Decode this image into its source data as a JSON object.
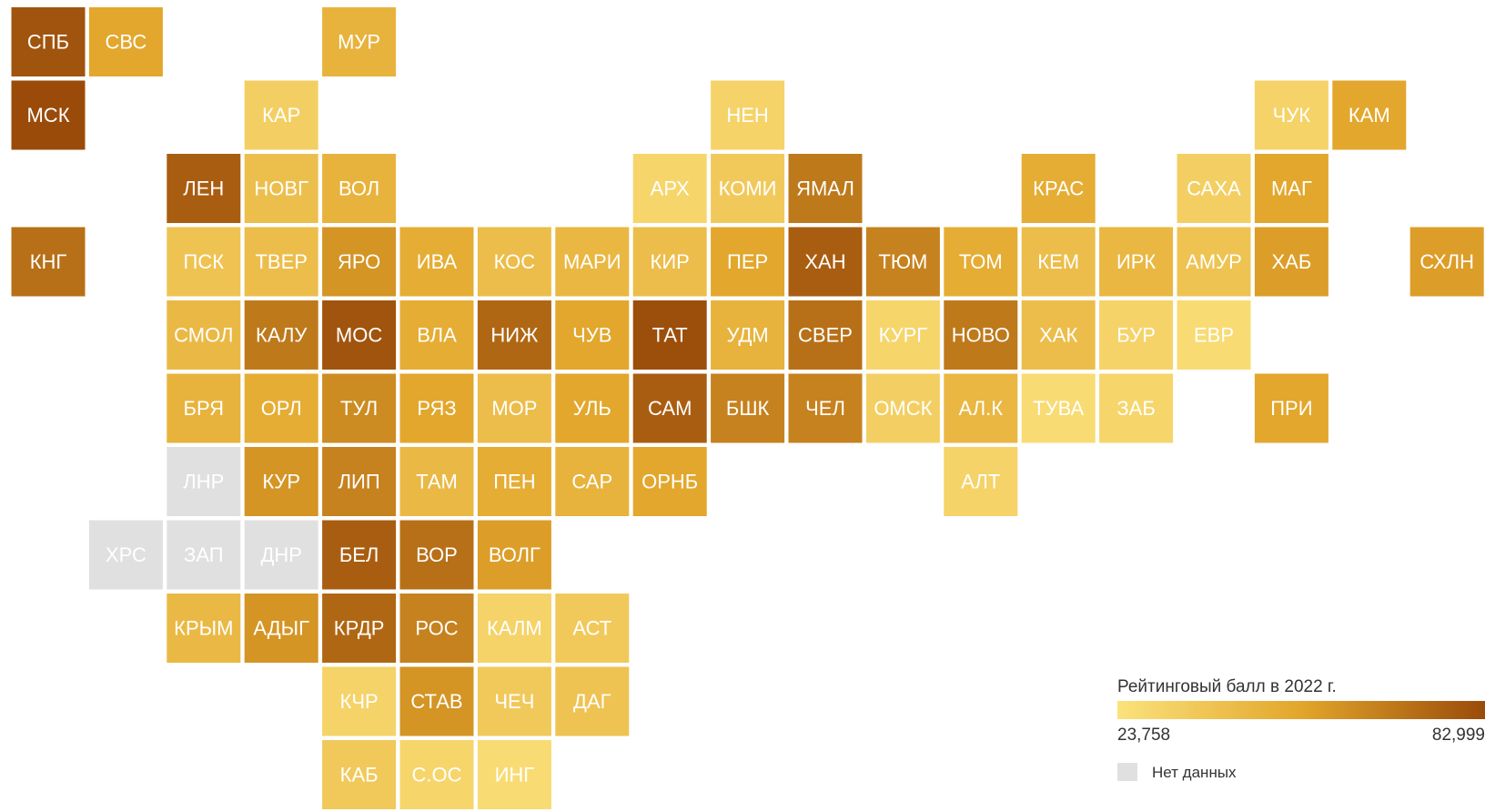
{
  "chart_data": {
    "type": "tilemap",
    "legend_title": "Рейтинговый балл в 2022 г.",
    "scale_min": {
      "value": 23.758,
      "label": "23,758"
    },
    "scale_max": {
      "value": 82.999,
      "label": "82,999"
    },
    "colors": [
      "#fbe27c",
      "#e2a62b",
      "#9a4b0a"
    ],
    "no_data_color": "#e0e0e0",
    "no_data_label": "Нет данных",
    "regions": [
      {
        "label": "СПБ",
        "value": 80
      },
      {
        "label": "СВС",
        "value": 53
      },
      {
        "label": "МУР",
        "value": 47
      },
      {
        "label": "МСК",
        "value": 82.999
      },
      {
        "label": "КАР",
        "value": 33
      },
      {
        "label": "НЕН",
        "value": 31
      },
      {
        "label": "ЧУК",
        "value": 31
      },
      {
        "label": "КАМ",
        "value": 53
      },
      {
        "label": "ЛЕН",
        "value": 77
      },
      {
        "label": "НОВГ",
        "value": 41
      },
      {
        "label": "ВОЛ",
        "value": 47
      },
      {
        "label": "АРХ",
        "value": 30
      },
      {
        "label": "КОМИ",
        "value": 36
      },
      {
        "label": "ЯМАЛ",
        "value": 68
      },
      {
        "label": "КРАС",
        "value": 50
      },
      {
        "label": "САХА",
        "value": 33
      },
      {
        "label": "МАГ",
        "value": 53
      },
      {
        "label": "КНГ",
        "value": 71
      },
      {
        "label": "ПСК",
        "value": 39
      },
      {
        "label": "ТВЕР",
        "value": 42
      },
      {
        "label": "ЯРО",
        "value": 59
      },
      {
        "label": "ИВА",
        "value": 50
      },
      {
        "label": "КОС",
        "value": 42
      },
      {
        "label": "МАРИ",
        "value": 45
      },
      {
        "label": "КИР",
        "value": 42
      },
      {
        "label": "ПЕР",
        "value": 53
      },
      {
        "label": "ХАН",
        "value": 77
      },
      {
        "label": "ТЮМ",
        "value": 65
      },
      {
        "label": "ТОМ",
        "value": 50
      },
      {
        "label": "КЕМ",
        "value": 42
      },
      {
        "label": "ИРК",
        "value": 45
      },
      {
        "label": "АМУР",
        "value": 39
      },
      {
        "label": "ХАБ",
        "value": 56
      },
      {
        "label": "СХЛН",
        "value": 56
      },
      {
        "label": "СМОЛ",
        "value": 44
      },
      {
        "label": "КАЛУ",
        "value": 68
      },
      {
        "label": "МОС",
        "value": 80
      },
      {
        "label": "ВЛА",
        "value": 50
      },
      {
        "label": "НИЖ",
        "value": 74
      },
      {
        "label": "ЧУВ",
        "value": 53
      },
      {
        "label": "ТАТ",
        "value": 82
      },
      {
        "label": "УДМ",
        "value": 47
      },
      {
        "label": "СВЕР",
        "value": 71
      },
      {
        "label": "КУРГ",
        "value": 30
      },
      {
        "label": "НОВО",
        "value": 68
      },
      {
        "label": "ХАК",
        "value": 42
      },
      {
        "label": "БУР",
        "value": 31
      },
      {
        "label": "ЕВР",
        "value": 27
      },
      {
        "label": "БРЯ",
        "value": 47
      },
      {
        "label": "ОРЛ",
        "value": 50
      },
      {
        "label": "ТУЛ",
        "value": 62
      },
      {
        "label": "РЯЗ",
        "value": 53
      },
      {
        "label": "МОР",
        "value": 42
      },
      {
        "label": "УЛЬ",
        "value": 53
      },
      {
        "label": "САМ",
        "value": 77
      },
      {
        "label": "БШК",
        "value": 65
      },
      {
        "label": "ЧЕЛ",
        "value": 65
      },
      {
        "label": "ОМСК",
        "value": 33
      },
      {
        "label": "АЛ.К",
        "value": 45
      },
      {
        "label": "ТУВА",
        "value": 27
      },
      {
        "label": "ЗАБ",
        "value": 30
      },
      {
        "label": "ПРИ",
        "value": 53
      },
      {
        "label": "ЛНР",
        "value": null
      },
      {
        "label": "КУР",
        "value": 59
      },
      {
        "label": "ЛИП",
        "value": 65
      },
      {
        "label": "ТАМ",
        "value": 44
      },
      {
        "label": "ПЕН",
        "value": 50
      },
      {
        "label": "САР",
        "value": 47
      },
      {
        "label": "ОРНБ",
        "value": 53
      },
      {
        "label": "АЛТ",
        "value": 31
      },
      {
        "label": "ХРС",
        "value": null
      },
      {
        "label": "ЗАП",
        "value": null
      },
      {
        "label": "ДНР",
        "value": null
      },
      {
        "label": "БЕЛ",
        "value": 77
      },
      {
        "label": "ВОР",
        "value": 71
      },
      {
        "label": "ВОЛГ",
        "value": 56
      },
      {
        "label": "КРЫМ",
        "value": 44
      },
      {
        "label": "АДЫГ",
        "value": 59
      },
      {
        "label": "КРДР",
        "value": 74
      },
      {
        "label": "РОС",
        "value": 65
      },
      {
        "label": "КАЛМ",
        "value": 31
      },
      {
        "label": "АСТ",
        "value": 36
      },
      {
        "label": "КЧР",
        "value": 31
      },
      {
        "label": "СТАВ",
        "value": 59
      },
      {
        "label": "ЧЕЧ",
        "value": 36
      },
      {
        "label": "ДАГ",
        "value": 39
      },
      {
        "label": "КАБ",
        "value": 36
      },
      {
        "label": "С.ОС",
        "value": 30
      },
      {
        "label": "ИНГ",
        "value": 27
      }
    ]
  }
}
